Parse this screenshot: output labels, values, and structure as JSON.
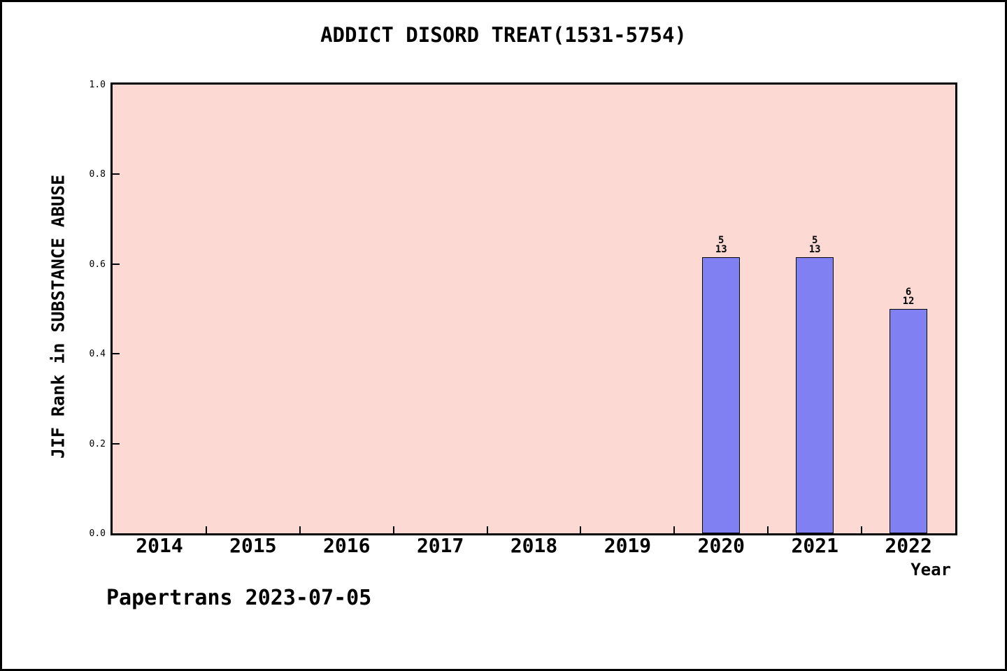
{
  "page": {
    "footer": "Papertrans 2023-07-05"
  },
  "chart_data": {
    "type": "bar",
    "title": "ADDICT DISORD TREAT(1531-5754)",
    "xlabel": "Year",
    "ylabel": "JIF Rank in SUBSTANCE ABUSE",
    "categories": [
      "2014",
      "2015",
      "2016",
      "2017",
      "2018",
      "2019",
      "2020",
      "2021",
      "2022"
    ],
    "series": [
      {
        "name": "JIF Rank in SUBSTANCE ABUSE",
        "values": [
          null,
          null,
          null,
          null,
          null,
          null,
          0.615,
          0.615,
          0.5
        ]
      }
    ],
    "bar_labels": [
      null,
      null,
      null,
      null,
      null,
      null,
      {
        "rank": "5",
        "total": "13"
      },
      {
        "rank": "5",
        "total": "13"
      },
      {
        "rank": "6",
        "total": "12"
      }
    ],
    "ylim": [
      0.0,
      1.0
    ],
    "yticks": [
      "0.0",
      "0.2",
      "0.4",
      "0.6",
      "0.8",
      "1.0"
    ],
    "grid": false,
    "legend": null,
    "colors": {
      "bar_fill": "#8080f2",
      "bar_border": "#000000",
      "plot_background": "#fdd9d3",
      "page_background": "#ffffff",
      "axis": "#000000",
      "text": "#000000"
    }
  }
}
